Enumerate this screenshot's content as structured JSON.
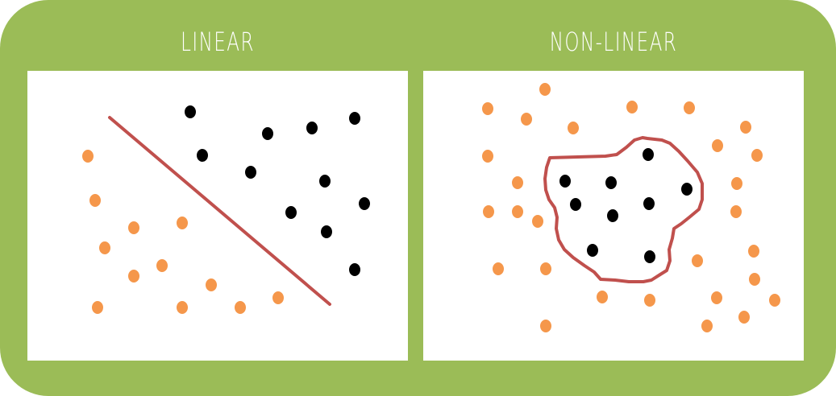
{
  "panels": [
    {
      "key": "linear",
      "title": "LINEAR"
    },
    {
      "key": "nonlinear",
      "title": "NON-LINEAR"
    }
  ],
  "colors": {
    "frame": "#9bbc57",
    "orange_points": "#f5974b",
    "black_points": "#000000",
    "boundary": "#c0504d"
  },
  "icons": [
    "orange-dot",
    "black-dot",
    "decision-boundary-line",
    "decision-boundary-curve"
  ]
}
